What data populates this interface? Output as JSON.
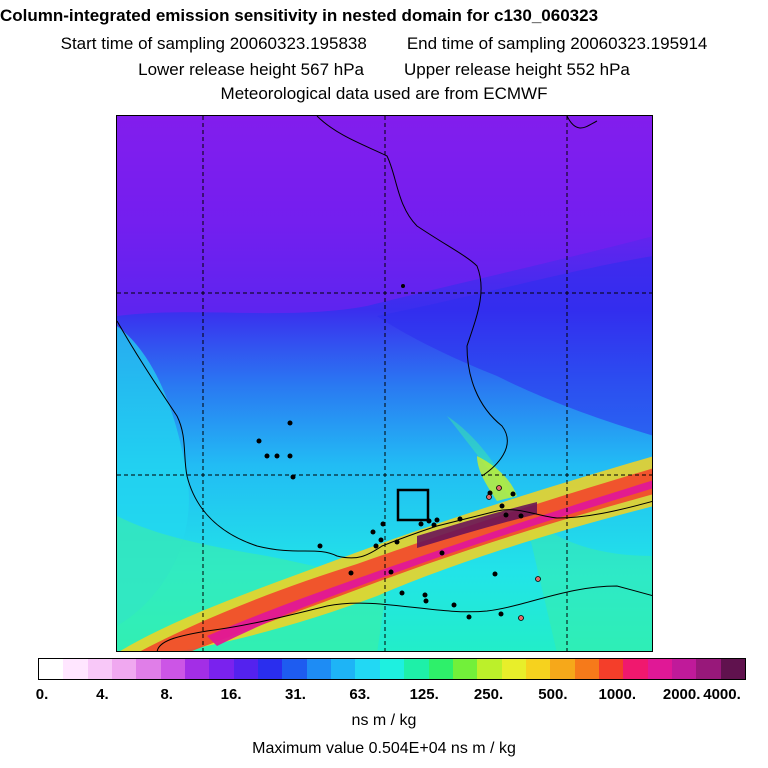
{
  "header": {
    "title": "Column-integrated emission sensitivity in nested domain for c130_060323",
    "start": "Start time of sampling 20060323.195838",
    "end": "End time of sampling 20060323.195914",
    "lower": "Lower release height  567 hPa",
    "upper": "Upper release height  552 hPa",
    "met": "Meteorological data used are from ECMWF"
  },
  "colorbar": {
    "colors": [
      "#ffffff",
      "#ffe6ff",
      "#f8c8f8",
      "#f0a8f0",
      "#e07ee8",
      "#cc55e6",
      "#a32ee6",
      "#7a22ee",
      "#5422ee",
      "#2a2eee",
      "#1e5cf0",
      "#1e8cf4",
      "#1eb4f6",
      "#22d8f4",
      "#1ef0e0",
      "#1ef0a8",
      "#2ef06a",
      "#72f03a",
      "#bcf02a",
      "#e8ee2a",
      "#f6d21e",
      "#f6a81a",
      "#f67a1a",
      "#f43e2a",
      "#f0186e",
      "#e01896",
      "#c01a9a",
      "#98187a",
      "#60124e"
    ],
    "ticks": [
      "0.",
      "4.",
      "8.",
      "16.",
      "31.",
      "63.",
      "125.",
      "250.",
      "500.",
      "1000.",
      "2000.",
      "4000."
    ],
    "units": "ns m / kg"
  },
  "footer": {
    "max": "Maximum value  0.504E+04 ns m / kg"
  },
  "map": {
    "release_box": "black-square",
    "site_markers": "black-dots"
  }
}
